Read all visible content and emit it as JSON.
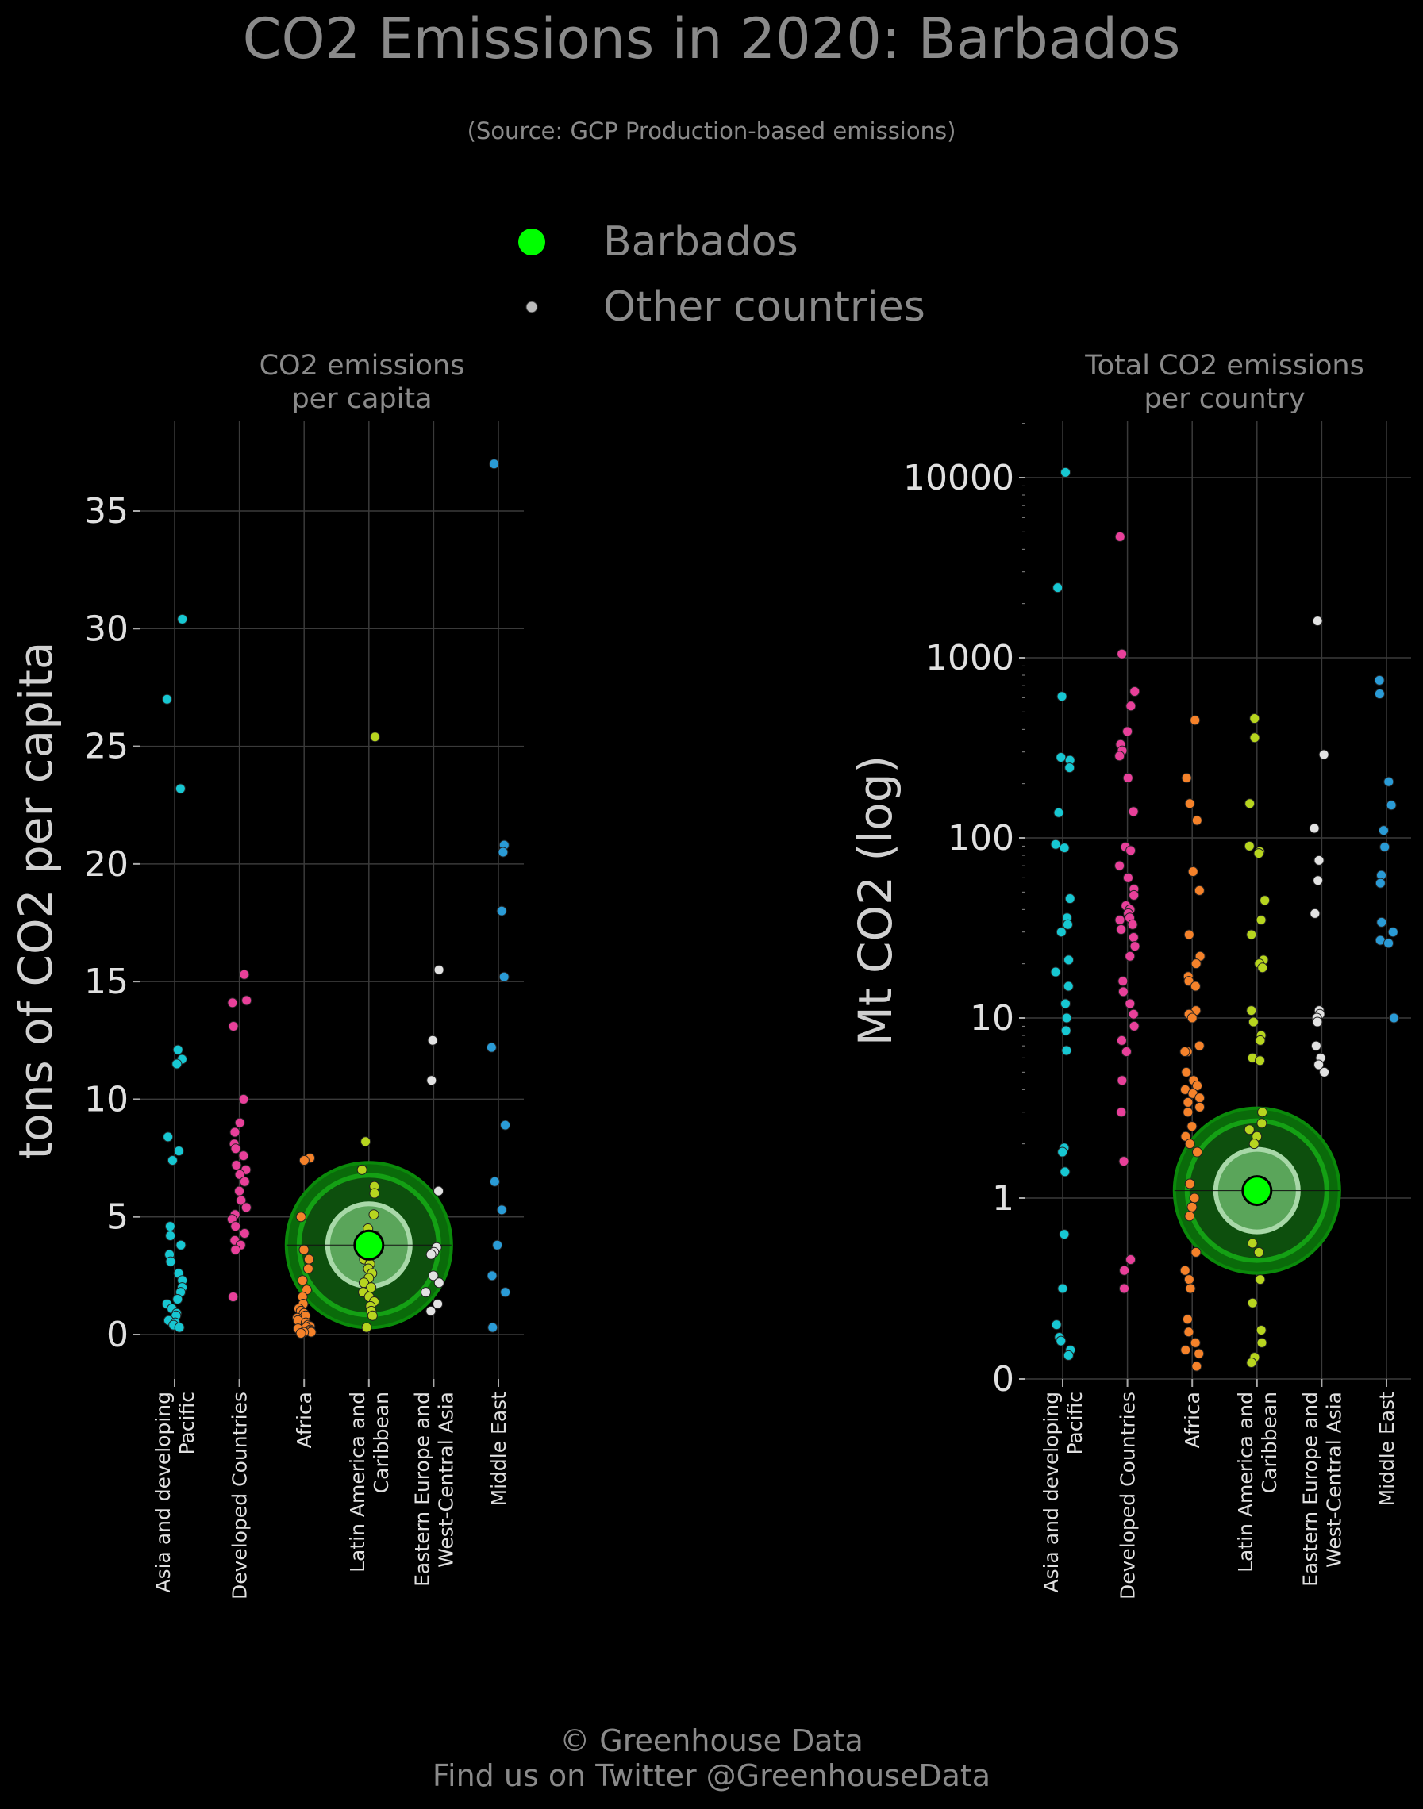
{
  "title": "CO2 Emissions in 2020: Barbados",
  "subtitle": "(Source: GCP Production-based emissions)",
  "legend": [
    {
      "label": "Barbados",
      "color": "#00ff00"
    },
    {
      "label": "Other countries",
      "color": "#bbbbbb"
    }
  ],
  "footer": {
    "line1": "© Greenhouse Data",
    "line2": "Find us on Twitter @GreenhouseData"
  },
  "colors": {
    "background": "#000000",
    "highlight": "#00ff00",
    "regions": {
      "Asia and developing Pacific": "#17c7d2",
      "Developed Countries": "#e8409a",
      "Africa": "#f5822a",
      "Latin America and Caribbean": "#b7d51f",
      "Eastern Europe and West-Central Asia": "#e2e2e2",
      "Middle East": "#2a9bd6"
    }
  },
  "chart_data": [
    {
      "type": "scatter",
      "title": "CO2 emissions\nper capita",
      "ylabel": "tons of CO2 per capita",
      "ylim": [
        -1.7,
        39
      ],
      "yticks": [
        "0",
        "5",
        "10",
        "15",
        "20",
        "25",
        "30",
        "35"
      ],
      "categories": [
        "Asia and developing\nPacific",
        "Developed Countries",
        "Africa",
        "Latin America and\nCaribbean",
        "Eastern Europe and\nWest-Central Asia",
        "Middle East"
      ],
      "grid": true,
      "highlight": {
        "name": "Barbados",
        "category": "Latin America and\nCaribbean",
        "value": 3.8
      },
      "series": [
        {
          "category": "Asia and developing\nPacific",
          "values": [
            30.4,
            27.0,
            23.2,
            12.1,
            11.7,
            11.5,
            8.4,
            7.8,
            7.4,
            4.6,
            4.2,
            3.8,
            3.4,
            3.1,
            2.6,
            2.3,
            2.0,
            1.8,
            1.5,
            1.3,
            1.1,
            0.9,
            0.8,
            0.6,
            0.5,
            0.4,
            0.3
          ]
        },
        {
          "category": "Developed Countries",
          "values": [
            15.3,
            14.2,
            14.1,
            13.1,
            10.0,
            9.0,
            8.6,
            8.1,
            7.9,
            7.6,
            7.2,
            7.0,
            6.8,
            6.5,
            6.1,
            5.7,
            5.4,
            5.1,
            4.9,
            4.6,
            4.3,
            4.0,
            3.8,
            3.6,
            1.6
          ]
        },
        {
          "category": "Africa",
          "values": [
            7.5,
            7.4,
            5.0,
            3.6,
            3.2,
            2.8,
            2.3,
            1.9,
            1.6,
            1.3,
            1.1,
            1.0,
            0.9,
            0.8,
            0.7,
            0.6,
            0.5,
            0.4,
            0.35,
            0.3,
            0.25,
            0.2,
            0.15,
            0.1,
            0.1,
            0.05
          ]
        },
        {
          "category": "Latin America and\nCaribbean",
          "values": [
            25.4,
            8.2,
            7.0,
            6.3,
            6.0,
            5.1,
            4.5,
            4.2,
            3.9,
            3.5,
            3.2,
            3.0,
            2.8,
            2.6,
            2.4,
            2.2,
            2.0,
            1.8,
            1.6,
            1.4,
            1.2,
            1.0,
            0.8,
            0.3
          ]
        },
        {
          "category": "Eastern Europe and\nWest-Central Asia",
          "values": [
            15.5,
            12.5,
            10.8,
            6.1,
            3.7,
            3.5,
            3.4,
            2.5,
            2.2,
            1.8,
            1.3,
            1.0
          ]
        },
        {
          "category": "Middle East",
          "values": [
            37.0,
            20.8,
            20.5,
            18.0,
            15.2,
            12.2,
            8.9,
            6.5,
            5.3,
            3.8,
            2.5,
            1.8,
            0.3
          ]
        }
      ]
    },
    {
      "type": "scatter",
      "title": "Total CO2 emissions\nper country",
      "ylabel": "Mt CO2 (log)",
      "scale": "symlog",
      "ylim": [
        0,
        20000
      ],
      "yticks": [
        "0",
        "1",
        "10",
        "100",
        "1000",
        "10000"
      ],
      "categories": [
        "Asia and developing\nPacific",
        "Developed Countries",
        "Africa",
        "Latin America and\nCaribbean",
        "Eastern Europe and\nWest-Central Asia",
        "Middle East"
      ],
      "grid": true,
      "highlight": {
        "name": "Barbados",
        "category": "Latin America and\nCaribbean",
        "value": 1.1
      },
      "series": [
        {
          "category": "Asia and developing\nPacific",
          "values": [
            10700,
            2450,
            610,
            280,
            270,
            245,
            138,
            92,
            88,
            46,
            36,
            33,
            30,
            21,
            18,
            15,
            12,
            10,
            8.5,
            6.6,
            1.9,
            1.8,
            1.4,
            0.8,
            0.5,
            0.3,
            0.23,
            0.21,
            0.16,
            0.13
          ]
        },
        {
          "category": "Developed Countries",
          "values": [
            4700,
            1050,
            650,
            540,
            390,
            330,
            305,
            285,
            215,
            140,
            89,
            85,
            70,
            60,
            52,
            48,
            42,
            40,
            38,
            36,
            35,
            33,
            31,
            28,
            25,
            22,
            16,
            14,
            12,
            10.5,
            9.0,
            7.5,
            6.5,
            4.5,
            3.0,
            1.6,
            0.66,
            0.6,
            0.5
          ]
        },
        {
          "category": "Africa",
          "values": [
            450,
            215,
            155,
            125,
            65,
            51,
            29,
            22,
            20,
            17,
            16,
            15,
            11,
            10.5,
            10,
            7,
            6.5,
            6.5,
            5,
            4.5,
            4.2,
            4,
            3.8,
            3.6,
            3.4,
            3.2,
            3,
            2.5,
            2.2,
            2,
            1.8,
            1.2,
            1.0,
            0.95,
            0.9,
            0.7,
            0.6,
            0.55,
            0.5,
            0.33,
            0.26,
            0.2,
            0.16,
            0.14,
            0.07
          ]
        },
        {
          "category": "Latin America and\nCaribbean",
          "values": [
            460,
            360,
            155,
            90,
            84,
            82,
            45,
            35,
            29,
            21,
            20,
            19,
            11,
            9.5,
            8,
            7.5,
            6,
            5.8,
            3,
            2.6,
            2.4,
            2.2,
            2.0,
            0.75,
            0.7,
            0.55,
            0.42,
            0.27,
            0.2,
            0.12,
            0.09
          ]
        },
        {
          "category": "Eastern Europe and\nWest-Central Asia",
          "values": [
            1600,
            290,
            113,
            75,
            58,
            38,
            11,
            10.5,
            10,
            9.5,
            7,
            6,
            5.5,
            5
          ]
        },
        {
          "category": "Middle East",
          "values": [
            750,
            630,
            205,
            152,
            110,
            89,
            62,
            56,
            34,
            30,
            27,
            26,
            10
          ]
        }
      ]
    }
  ]
}
